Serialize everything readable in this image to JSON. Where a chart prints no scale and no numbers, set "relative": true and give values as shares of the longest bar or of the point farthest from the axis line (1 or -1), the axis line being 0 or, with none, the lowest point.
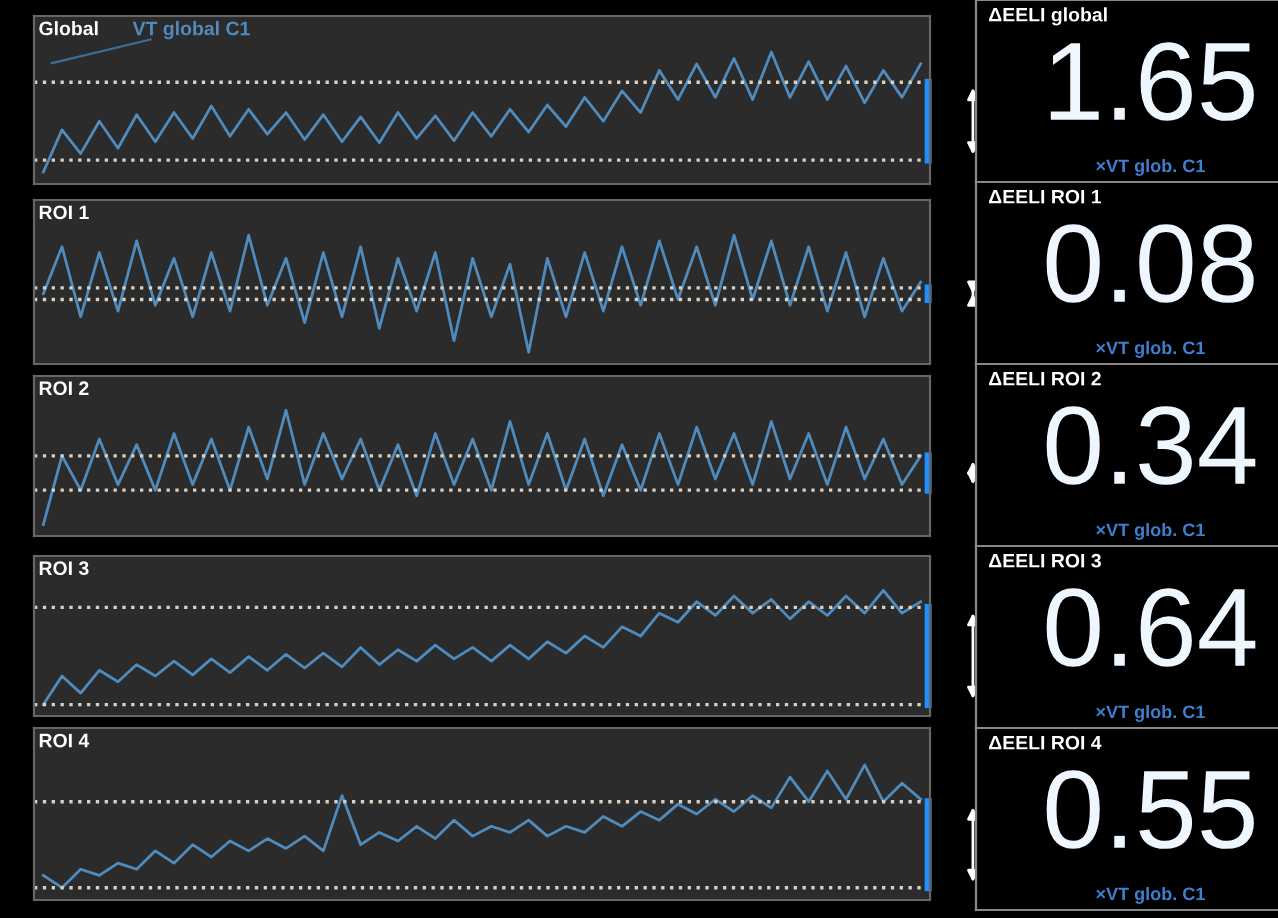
{
  "chart_data": [
    {
      "type": "line",
      "title": "Global",
      "relative": true,
      "annotations": [
        "VT global C1"
      ],
      "categories": [
        null,
        null,
        null,
        null,
        null,
        null,
        null,
        null,
        null,
        null,
        null,
        null,
        null,
        null,
        null,
        null,
        null,
        null,
        null,
        null,
        null,
        null,
        null,
        null,
        null,
        null,
        null,
        null,
        null,
        null,
        null,
        null,
        null,
        null,
        null,
        null,
        null,
        null,
        null,
        null,
        null,
        null,
        null,
        null,
        null,
        null,
        null,
        null
      ],
      "series": [
        {
          "color": "#4f8bbd",
          "values": [
            -0.11,
            0.28,
            0.06,
            0.36,
            0.11,
            0.42,
            0.17,
            0.44,
            0.2,
            0.5,
            0.22,
            0.47,
            0.24,
            0.44,
            0.19,
            0.42,
            0.17,
            0.4,
            0.16,
            0.44,
            0.2,
            0.41,
            0.18,
            0.44,
            0.22,
            0.47,
            0.26,
            0.51,
            0.31,
            0.58,
            0.36,
            0.64,
            0.44,
            0.83,
            0.56,
            0.89,
            0.58,
            0.94,
            0.56,
            1.0,
            0.58,
            0.91,
            0.56,
            0.87,
            0.53,
            0.83,
            0.58,
            0.89
          ]
        }
      ],
      "ref_lines": [
        {
          "axis": "y",
          "value": 0,
          "color": "#d8d0c0",
          "line_style": "dotted"
        },
        {
          "axis": "y",
          "value": 0.72,
          "color": "#d8d0c0",
          "line_style": "dotted"
        }
      ]
    },
    {
      "type": "other",
      "title": "ΔEELI global",
      "annotations": [
        "1.65",
        "×VT glob. C1"
      ]
    },
    {
      "type": "line",
      "title": "ROI 1",
      "relative": true,
      "categories": [
        null,
        null,
        null,
        null,
        null,
        null,
        null,
        null,
        null,
        null,
        null,
        null,
        null,
        null,
        null,
        null,
        null,
        null,
        null,
        null,
        null,
        null,
        null,
        null,
        null,
        null,
        null,
        null,
        null,
        null,
        null,
        null,
        null,
        null,
        null,
        null,
        null,
        null,
        null,
        null,
        null,
        null,
        null,
        null,
        null,
        null,
        null,
        null
      ],
      "series": [
        {
          "color": "#4f8bbd",
          "values": [
            0.09,
            0.82,
            -0.27,
            0.73,
            -0.18,
            0.91,
            -0.09,
            0.64,
            -0.27,
            0.73,
            -0.18,
            1.0,
            -0.09,
            0.64,
            -0.36,
            0.73,
            -0.27,
            0.82,
            -0.45,
            0.64,
            -0.18,
            0.73,
            -0.64,
            0.64,
            -0.27,
            0.55,
            -0.82,
            0.64,
            -0.27,
            0.73,
            -0.18,
            0.82,
            -0.09,
            0.91,
            0,
            0.82,
            -0.09,
            1.0,
            0,
            0.91,
            -0.09,
            0.82,
            -0.18,
            0.73,
            -0.27,
            0.64,
            -0.18,
            0.27
          ]
        }
      ],
      "ref_lines": [
        {
          "axis": "y",
          "value": 0,
          "color": "#d8d0c0",
          "line_style": "dotted"
        },
        {
          "axis": "y",
          "value": 0.18,
          "color": "#d8d0c0",
          "line_style": "dotted"
        }
      ]
    },
    {
      "type": "other",
      "title": "ΔEELI ROI 1",
      "annotations": [
        "0.08",
        "×VT glob. C1"
      ]
    },
    {
      "type": "line",
      "title": "ROI 2",
      "relative": true,
      "categories": [
        null,
        null,
        null,
        null,
        null,
        null,
        null,
        null,
        null,
        null,
        null,
        null,
        null,
        null,
        null,
        null,
        null,
        null,
        null,
        null,
        null,
        null,
        null,
        null,
        null,
        null,
        null,
        null,
        null,
        null,
        null,
        null,
        null,
        null,
        null,
        null,
        null,
        null,
        null,
        null,
        null,
        null,
        null,
        null,
        null,
        null,
        null,
        null
      ],
      "series": [
        {
          "color": "#4f8bbd",
          "values": [
            -0.43,
            0.43,
            0,
            0.64,
            0.07,
            0.57,
            0,
            0.71,
            0.07,
            0.64,
            0,
            0.79,
            0.14,
            1.0,
            0.07,
            0.71,
            0.14,
            0.64,
            0,
            0.57,
            -0.07,
            0.71,
            0.07,
            0.64,
            0,
            0.86,
            0.07,
            0.71,
            0,
            0.64,
            -0.07,
            0.57,
            0,
            0.71,
            0.07,
            0.79,
            0.14,
            0.71,
            0.07,
            0.86,
            0.14,
            0.71,
            0.07,
            0.79,
            0.14,
            0.64,
            0.07,
            0.43
          ]
        }
      ],
      "ref_lines": [
        {
          "axis": "y",
          "value": 0,
          "color": "#d8d0c0",
          "line_style": "dotted"
        },
        {
          "axis": "y",
          "value": 0.43,
          "color": "#d8d0c0",
          "line_style": "dotted"
        }
      ]
    },
    {
      "type": "other",
      "title": "ΔEELI ROI 2",
      "annotations": [
        "0.34",
        "×VT glob. C1"
      ]
    },
    {
      "type": "line",
      "title": "ROI 3",
      "relative": true,
      "categories": [
        null,
        null,
        null,
        null,
        null,
        null,
        null,
        null,
        null,
        null,
        null,
        null,
        null,
        null,
        null,
        null,
        null,
        null,
        null,
        null,
        null,
        null,
        null,
        null,
        null,
        null,
        null,
        null,
        null,
        null,
        null,
        null,
        null,
        null,
        null,
        null,
        null,
        null,
        null,
        null,
        null,
        null,
        null,
        null,
        null,
        null,
        null,
        null
      ],
      "series": [
        {
          "color": "#4f8bbd",
          "values": [
            0.0,
            0.25,
            0.1,
            0.3,
            0.2,
            0.35,
            0.25,
            0.38,
            0.26,
            0.4,
            0.28,
            0.42,
            0.3,
            0.44,
            0.32,
            0.45,
            0.33,
            0.5,
            0.35,
            0.48,
            0.38,
            0.52,
            0.4,
            0.5,
            0.38,
            0.52,
            0.4,
            0.55,
            0.45,
            0.6,
            0.5,
            0.68,
            0.6,
            0.8,
            0.72,
            0.9,
            0.78,
            0.95,
            0.8,
            0.92,
            0.75,
            0.9,
            0.78,
            0.95,
            0.8,
            1.0,
            0.8,
            0.9
          ]
        }
      ],
      "ref_lines": [
        {
          "axis": "y",
          "value": 0.0,
          "color": "#d8d0c0",
          "line_style": "dotted"
        },
        {
          "axis": "y",
          "value": 0.85,
          "color": "#d8d0c0",
          "line_style": "dotted"
        }
      ]
    },
    {
      "type": "other",
      "title": "ΔEELI ROI 3",
      "annotations": [
        "0.64",
        "×VT glob. C1"
      ]
    },
    {
      "type": "line",
      "title": "ROI 4",
      "relative": true,
      "categories": [
        null,
        null,
        null,
        null,
        null,
        null,
        null,
        null,
        null,
        null,
        null,
        null,
        null,
        null,
        null,
        null,
        null,
        null,
        null,
        null,
        null,
        null,
        null,
        null,
        null,
        null,
        null,
        null,
        null,
        null,
        null,
        null,
        null,
        null,
        null,
        null,
        null,
        null,
        null,
        null,
        null,
        null,
        null,
        null,
        null,
        null,
        null,
        null
      ],
      "series": [
        {
          "color": "#4f8bbd",
          "values": [
            0.1,
            0.0,
            0.15,
            0.1,
            0.2,
            0.15,
            0.3,
            0.2,
            0.35,
            0.25,
            0.38,
            0.3,
            0.4,
            0.32,
            0.42,
            0.3,
            0.75,
            0.35,
            0.45,
            0.38,
            0.5,
            0.4,
            0.55,
            0.42,
            0.5,
            0.45,
            0.55,
            0.42,
            0.5,
            0.45,
            0.58,
            0.5,
            0.62,
            0.55,
            0.68,
            0.6,
            0.72,
            0.62,
            0.75,
            0.65,
            0.9,
            0.7,
            0.95,
            0.72,
            1.0,
            0.7,
            0.85,
            0.72
          ]
        }
      ],
      "ref_lines": [
        {
          "axis": "y",
          "value": 0.0,
          "color": "#d8d0c0",
          "line_style": "dotted"
        },
        {
          "axis": "y",
          "value": 0.7,
          "color": "#d8d0c0",
          "line_style": "dotted"
        }
      ]
    },
    {
      "type": "other",
      "title": "ΔEELI ROI 4",
      "annotations": [
        "0.55",
        "×VT glob. C1"
      ]
    }
  ]
}
